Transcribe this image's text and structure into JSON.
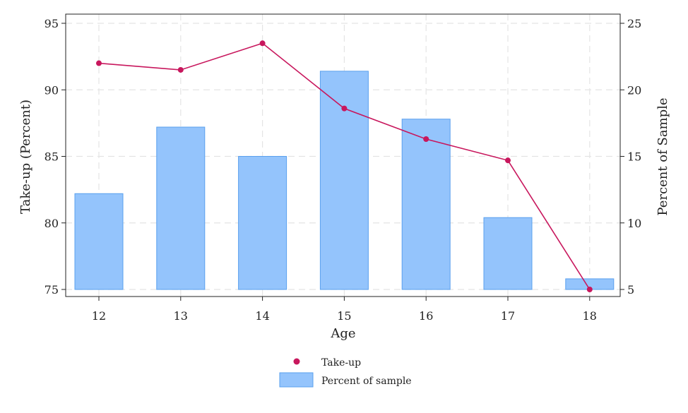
{
  "chart_data": {
    "type": "bar",
    "xlabel": "Age",
    "ylabel_left": "Take-up (Percent)",
    "ylabel_right": "Percent of Sample",
    "categories": [
      "12",
      "13",
      "14",
      "15",
      "16",
      "17",
      "18"
    ],
    "ylim_left": [
      75,
      95
    ],
    "ylim_right": [
      5,
      25
    ],
    "yticks_left": [
      75,
      80,
      85,
      90,
      95
    ],
    "yticks_right": [
      5,
      10,
      15,
      20,
      25
    ],
    "grid": true,
    "legend_position": "bottom-center",
    "series": [
      {
        "name": "Take-up",
        "kind": "line",
        "axis": "left",
        "color": "#c8175d",
        "values": [
          92.0,
          91.5,
          93.5,
          88.6,
          86.3,
          84.7,
          75.0
        ]
      },
      {
        "name": "Percent of sample",
        "kind": "bar",
        "axis": "right",
        "color": "#94c4fc",
        "edge_color": "#5aa0ee",
        "values": [
          12.2,
          17.2,
          15.0,
          21.4,
          17.8,
          10.4,
          5.8
        ]
      }
    ]
  }
}
